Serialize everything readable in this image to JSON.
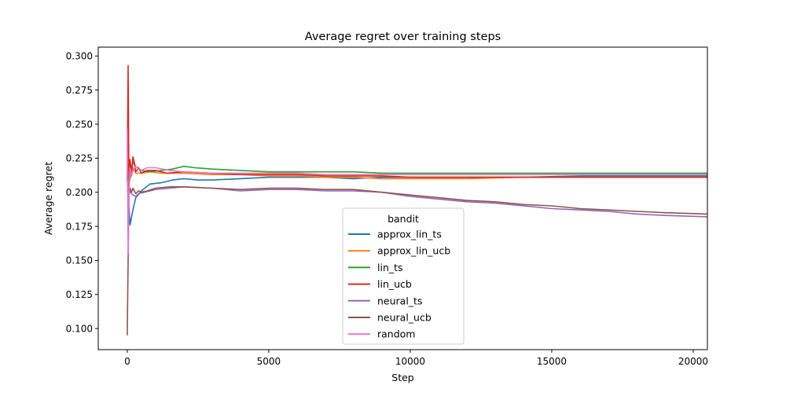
{
  "chart_data": {
    "type": "line",
    "title": "Average regret over training steps",
    "xlabel": "Step",
    "ylabel": "Average regret",
    "xlim": [
      -1025,
      20500
    ],
    "ylim": [
      0.0845,
      0.3065
    ],
    "xticks": [
      0,
      5000,
      10000,
      15000,
      20000
    ],
    "xtick_labels": [
      "0",
      "5000",
      "10000",
      "15000",
      "20000"
    ],
    "yticks": [
      0.1,
      0.125,
      0.15,
      0.175,
      0.2,
      0.225,
      0.25,
      0.275,
      0.3
    ],
    "ytick_labels": [
      "0.100",
      "0.125",
      "0.150",
      "0.175",
      "0.200",
      "0.225",
      "0.250",
      "0.275",
      "0.300"
    ],
    "grid": false,
    "legend": {
      "title": "bandit",
      "placement": "lower-center"
    },
    "series": [
      {
        "name": "approx_lin_ts",
        "color": "#1f77b4",
        "x": [
          0,
          100,
          200,
          300,
          500,
          800,
          1200,
          1600,
          2000,
          2500,
          3000,
          4000,
          5000,
          6000,
          7000,
          8000,
          9000,
          10000,
          12000,
          14000,
          16000,
          18000,
          20500
        ],
        "y": [
          0.21,
          0.176,
          0.187,
          0.196,
          0.201,
          0.206,
          0.207,
          0.209,
          0.21,
          0.209,
          0.209,
          0.21,
          0.211,
          0.211,
          0.211,
          0.21,
          0.211,
          0.211,
          0.211,
          0.211,
          0.212,
          0.212,
          0.212
        ]
      },
      {
        "name": "approx_lin_ucb",
        "color": "#ff7f0e",
        "x": [
          0,
          100,
          200,
          300,
          500,
          800,
          1200,
          1600,
          2000,
          3000,
          4000,
          5000,
          6000,
          7000,
          8000,
          9000,
          10000,
          12000,
          14000,
          16000,
          18000,
          20500
        ],
        "y": [
          0.22,
          0.213,
          0.218,
          0.214,
          0.214,
          0.215,
          0.214,
          0.214,
          0.214,
          0.213,
          0.213,
          0.212,
          0.212,
          0.211,
          0.211,
          0.21,
          0.21,
          0.21,
          0.211,
          0.211,
          0.211,
          0.211
        ]
      },
      {
        "name": "lin_ts",
        "color": "#2ca02c",
        "x": [
          0,
          100,
          200,
          300,
          500,
          800,
          1200,
          1600,
          2000,
          2400,
          3000,
          4000,
          5000,
          6000,
          7000,
          8000,
          9000,
          10000,
          12000,
          14000,
          16000,
          18000,
          20500
        ],
        "y": [
          0.2,
          0.21,
          0.222,
          0.219,
          0.216,
          0.215,
          0.216,
          0.217,
          0.219,
          0.218,
          0.217,
          0.216,
          0.215,
          0.215,
          0.215,
          0.215,
          0.214,
          0.214,
          0.214,
          0.214,
          0.214,
          0.214,
          0.214
        ]
      },
      {
        "name": "lin_ucb",
        "color": "#d62728",
        "x": [
          0,
          30,
          60,
          100,
          150,
          200,
          250,
          300,
          400,
          500,
          700,
          1000,
          1400,
          2000,
          3000,
          4000,
          5000,
          6000,
          7000,
          8000,
          9000,
          10000,
          12000,
          14000,
          16000,
          18000,
          20500
        ],
        "y": [
          0.21,
          0.293,
          0.2,
          0.224,
          0.214,
          0.226,
          0.222,
          0.215,
          0.218,
          0.214,
          0.216,
          0.216,
          0.214,
          0.215,
          0.214,
          0.213,
          0.213,
          0.213,
          0.212,
          0.212,
          0.212,
          0.211,
          0.211,
          0.211,
          0.211,
          0.211,
          0.211
        ]
      },
      {
        "name": "neural_ts",
        "color": "#9467bd",
        "x": [
          0,
          100,
          200,
          300,
          400,
          600,
          800,
          1000,
          1500,
          2000,
          3000,
          4000,
          5000,
          6000,
          7000,
          8000,
          9000,
          10000,
          11000,
          12000,
          13000,
          14000,
          15000,
          16000,
          17000,
          18000,
          19000,
          20500
        ],
        "y": [
          0.205,
          0.2,
          0.198,
          0.197,
          0.199,
          0.2,
          0.201,
          0.202,
          0.203,
          0.204,
          0.203,
          0.201,
          0.202,
          0.202,
          0.201,
          0.201,
          0.2,
          0.197,
          0.195,
          0.193,
          0.192,
          0.19,
          0.188,
          0.187,
          0.186,
          0.184,
          0.183,
          0.182
        ]
      },
      {
        "name": "neural_ucb",
        "color": "#8c564b",
        "x": [
          0,
          30,
          60,
          100,
          150,
          200,
          300,
          400,
          500,
          700,
          1000,
          1500,
          2000,
          3000,
          4000,
          5000,
          6000,
          7000,
          8000,
          9000,
          10000,
          11000,
          12000,
          13000,
          14000,
          15000,
          16000,
          17000,
          18000,
          19000,
          20500
        ],
        "y": [
          0.095,
          0.15,
          0.2,
          0.203,
          0.2,
          0.203,
          0.199,
          0.201,
          0.2,
          0.201,
          0.203,
          0.204,
          0.204,
          0.203,
          0.202,
          0.203,
          0.203,
          0.202,
          0.202,
          0.2,
          0.198,
          0.196,
          0.194,
          0.193,
          0.191,
          0.19,
          0.188,
          0.187,
          0.186,
          0.185,
          0.184
        ]
      },
      {
        "name": "random",
        "color": "#e377c2",
        "x": [
          0,
          30,
          60,
          100,
          150,
          200,
          300,
          400,
          500,
          700,
          1000,
          1500,
          2000,
          3000,
          4000,
          5000,
          6000,
          7000,
          8000,
          9000,
          10000,
          12000,
          14000,
          16000,
          18000,
          20500
        ],
        "y": [
          0.247,
          0.155,
          0.2,
          0.218,
          0.212,
          0.216,
          0.219,
          0.217,
          0.216,
          0.218,
          0.218,
          0.216,
          0.215,
          0.214,
          0.214,
          0.214,
          0.214,
          0.213,
          0.213,
          0.213,
          0.213,
          0.213,
          0.213,
          0.213,
          0.213,
          0.213
        ]
      }
    ]
  }
}
